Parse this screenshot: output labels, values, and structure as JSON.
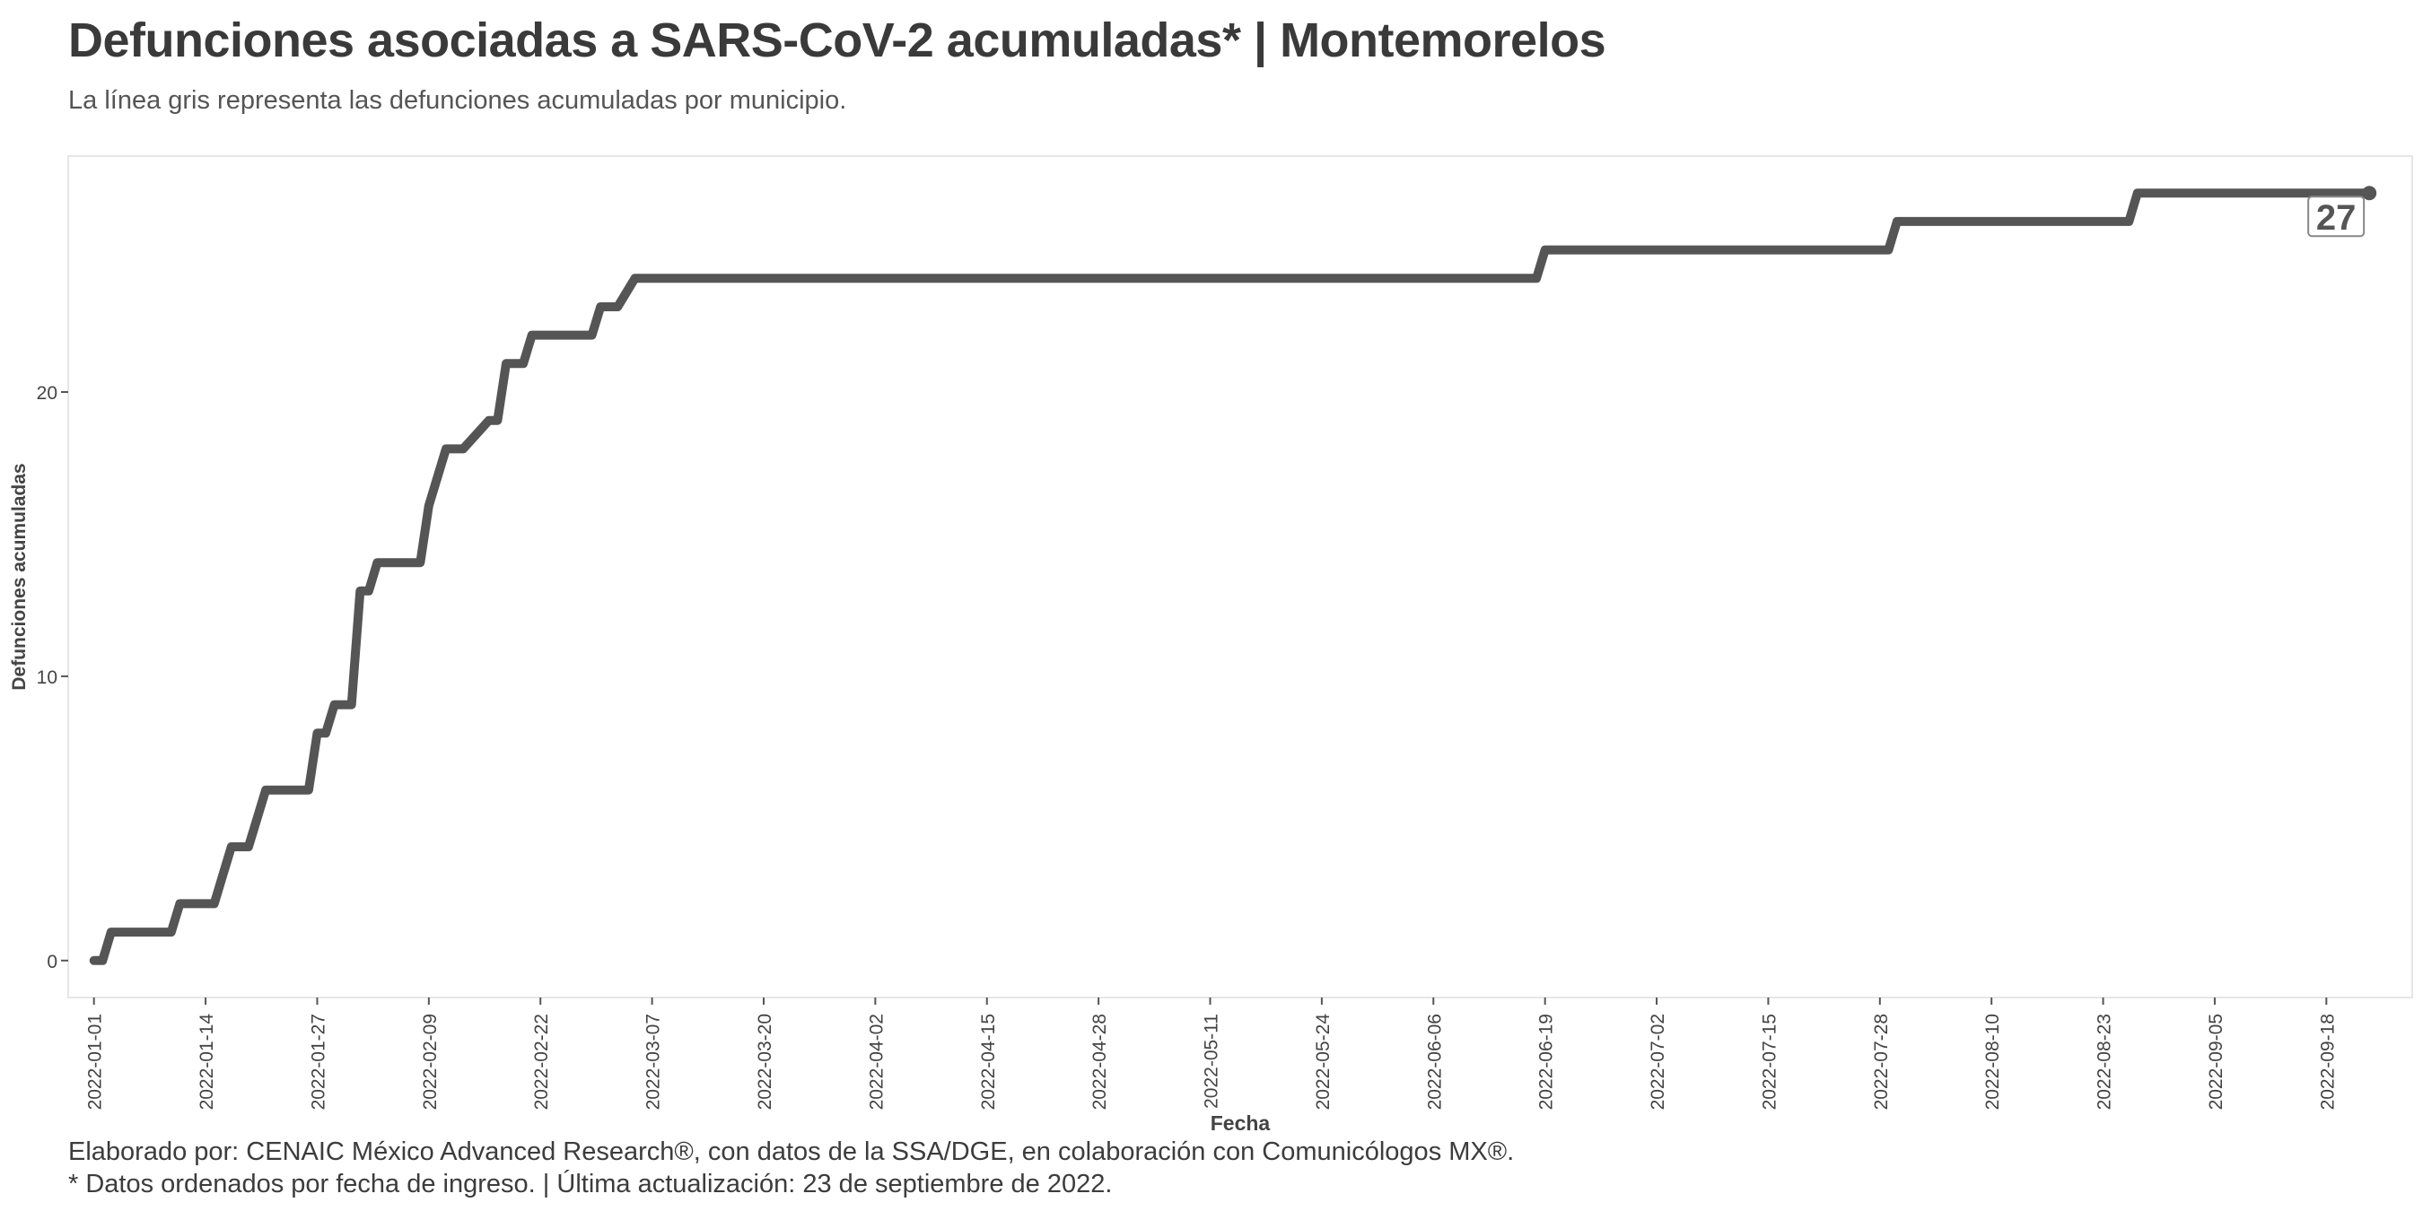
{
  "title": "Defunciones asociadas a SARS-CoV-2 acumuladas* | Montemorelos",
  "subtitle": "La línea gris representa las defunciones acumuladas por municipio.",
  "caption_line1": "Elaborado por: CENAIC México Advanced Research®, con datos de la SSA/DGE, en colaboración con Comunicólogos MX®.",
  "caption_line2": "* Datos ordenados por fecha de ingreso. | Última actualización: 23 de septiembre de 2022.",
  "chart_data": {
    "type": "line",
    "xlabel": "Fecha",
    "ylabel": "Defunciones acumuladas",
    "xlim": [
      "2021-12-29",
      "2022-09-28"
    ],
    "ylim": [
      -1.3,
      28.3
    ],
    "xticks": [
      "2022-01-01",
      "2022-01-14",
      "2022-01-27",
      "2022-02-09",
      "2022-02-22",
      "2022-03-07",
      "2022-03-20",
      "2022-04-02",
      "2022-04-15",
      "2022-04-28",
      "2022-05-11",
      "2022-05-24",
      "2022-06-06",
      "2022-06-19",
      "2022-07-02",
      "2022-07-15",
      "2022-07-28",
      "2022-08-10",
      "2022-08-23",
      "2022-09-05",
      "2022-09-18"
    ],
    "yticks": [
      0,
      10,
      20
    ],
    "grid": false,
    "line_color": "#555555",
    "end_label": "27",
    "series": [
      {
        "x": [
          "2022-01-01",
          "2022-01-02",
          "2022-01-03",
          "2022-01-10",
          "2022-01-11",
          "2022-01-15",
          "2022-01-17",
          "2022-01-19",
          "2022-01-20",
          "2022-01-21",
          "2022-01-26",
          "2022-01-27",
          "2022-01-28",
          "2022-01-29",
          "2022-01-31",
          "2022-02-01",
          "2022-02-02",
          "2022-02-03",
          "2022-02-08",
          "2022-02-09",
          "2022-02-11",
          "2022-02-13",
          "2022-02-16",
          "2022-02-17",
          "2022-02-18",
          "2022-02-20",
          "2022-02-21",
          "2022-02-22",
          "2022-02-28",
          "2022-03-01",
          "2022-03-03",
          "2022-03-05",
          "2022-06-18",
          "2022-06-19",
          "2022-07-29",
          "2022-07-30",
          "2022-08-26",
          "2022-08-27",
          "2022-09-23"
        ],
        "y": [
          0,
          0,
          1,
          1,
          2,
          2,
          4,
          4,
          5,
          6,
          6,
          8,
          8,
          9,
          9,
          13,
          13,
          14,
          14,
          16,
          18,
          18,
          19,
          19,
          21,
          21,
          22,
          22,
          22,
          23,
          23,
          24,
          24,
          25,
          25,
          26,
          26,
          27,
          27
        ]
      }
    ]
  }
}
